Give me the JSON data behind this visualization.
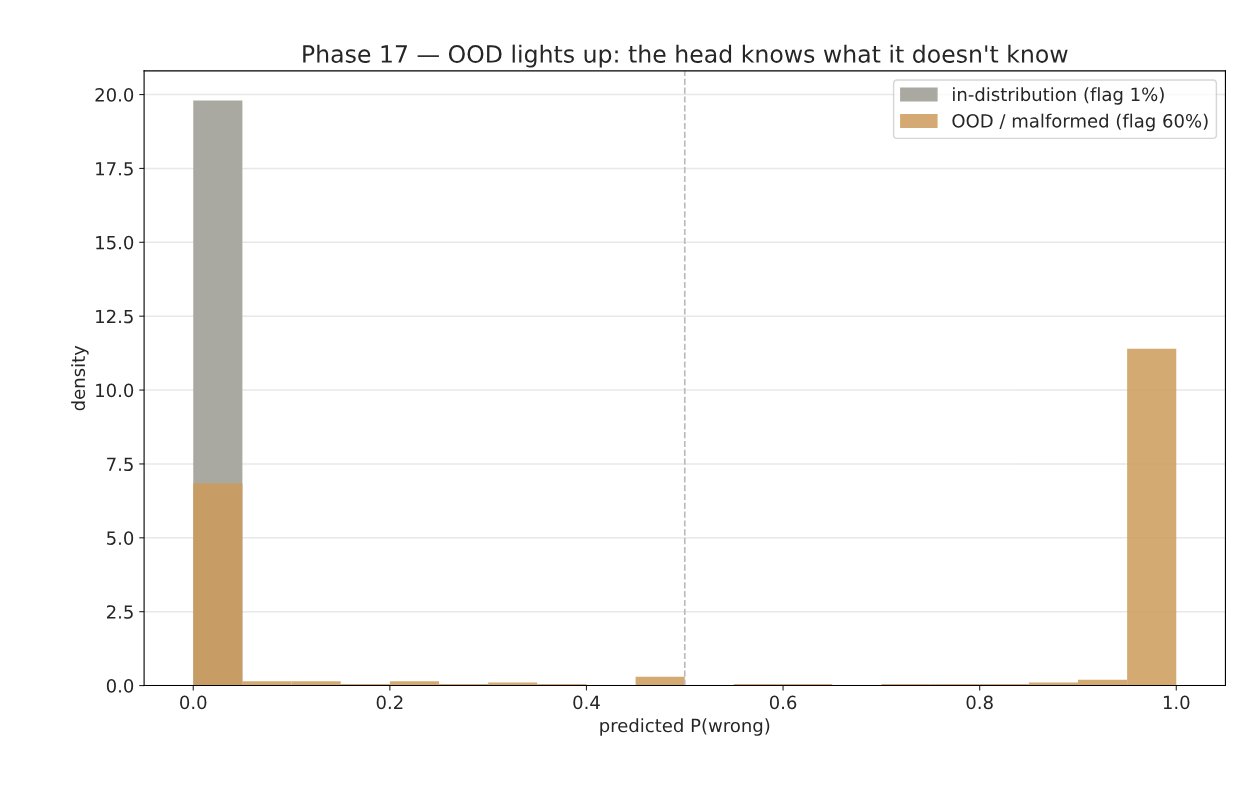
{
  "chart_data": {
    "type": "histogram",
    "title": "Phase 17 — OOD lights up: the head knows what it doesn't know",
    "xlabel": "predicted P(wrong)",
    "ylabel": "density",
    "bins": [
      0.0,
      0.05,
      0.1,
      0.15,
      0.2,
      0.25,
      0.3,
      0.35,
      0.4,
      0.45,
      0.5,
      0.55,
      0.6,
      0.65,
      0.7,
      0.75,
      0.8,
      0.85,
      0.9,
      0.95,
      1.0
    ],
    "series": [
      {
        "name": "in-distribution (flag 1%)",
        "color": "#a9a9a1",
        "values": [
          19.8,
          0,
          0,
          0,
          0,
          0,
          0,
          0,
          0,
          0,
          0,
          0,
          0,
          0,
          0,
          0,
          0,
          0,
          0,
          0
        ]
      },
      {
        "name": "OOD / malformed (flag 60%)",
        "color": "#cd9b5b",
        "values": [
          6.85,
          0.15,
          0.15,
          0.05,
          0.15,
          0.05,
          0.1,
          0.05,
          0,
          0.3,
          0,
          0.05,
          0.05,
          0,
          0.05,
          0.05,
          0.05,
          0.1,
          0.2,
          11.4
        ]
      }
    ],
    "xlim": [
      -0.05,
      1.05
    ],
    "xticks": [
      {
        "value": 0,
        "label": "0.0"
      },
      0.2,
      0.4,
      0.6,
      0.8,
      {
        "value": 1,
        "label": "1.0"
      }
    ],
    "ylim": [
      0,
      20.8
    ],
    "yticks": [
      {
        "value": 0,
        "label": "0.0"
      },
      2.5,
      {
        "value": 5,
        "label": "5.0"
      },
      7.5,
      {
        "value": 10,
        "label": "10.0"
      },
      12.5,
      {
        "value": 15,
        "label": "15.0"
      },
      17.5,
      {
        "value": 20,
        "label": "20.0"
      }
    ],
    "grid": "y",
    "legend": "top right",
    "ref_lines": [
      {
        "axis": "x",
        "value": 0.5,
        "color": "#bbbbbb",
        "line_style": "dashed"
      }
    ]
  }
}
